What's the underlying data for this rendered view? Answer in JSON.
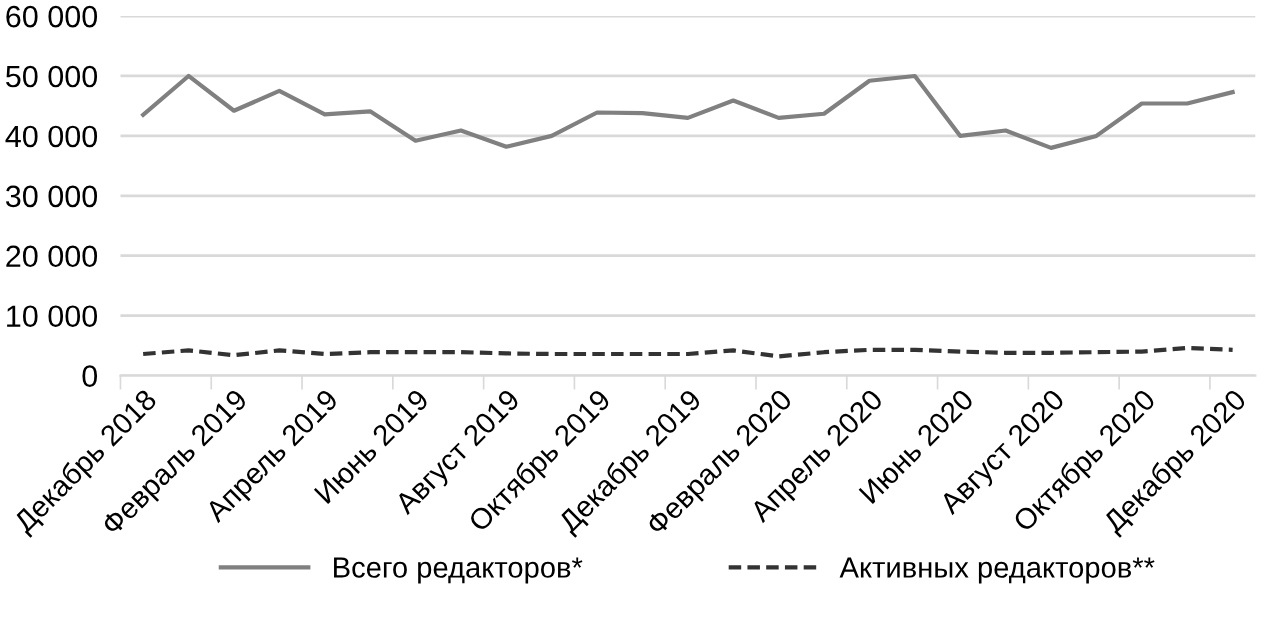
{
  "chart_data": {
    "type": "line",
    "categories": [
      "Декабрь 2018",
      null,
      "Февраль 2019",
      null,
      "Апрель 2019",
      null,
      "Июнь 2019",
      null,
      "Август 2019",
      null,
      "Октябрь 2019",
      null,
      "Декабрь 2019",
      null,
      "Февраль 2020",
      null,
      "Апрель 2020",
      null,
      "Июнь 2020",
      null,
      "Август 2020",
      null,
      "Октябрь 2020",
      null,
      "Декабрь 2020"
    ],
    "series": [
      {
        "name": "Всего редакторов*",
        "color": "#808080",
        "line_style": "solid",
        "values": [
          43500,
          50000,
          44200,
          47500,
          43600,
          44100,
          39200,
          40900,
          38200,
          40000,
          43900,
          43800,
          43000,
          45900,
          43000,
          43700,
          49200,
          50000,
          40000,
          40900,
          38000,
          40000,
          45400,
          45400,
          47300
        ]
      },
      {
        "name": "Активных редакторов**",
        "color": "#333333",
        "line_style": "dashed",
        "values": [
          3600,
          4200,
          3400,
          4200,
          3600,
          3900,
          3900,
          3900,
          3700,
          3600,
          3600,
          3600,
          3600,
          4200,
          3200,
          3900,
          4300,
          4300,
          4000,
          3800,
          3800,
          3900,
          4000,
          4600,
          4300
        ]
      }
    ],
    "ylim": [
      0,
      60000
    ],
    "yticks": [
      {
        "value": 0,
        "label": "0"
      },
      {
        "value": 10000,
        "label": "10 000"
      },
      {
        "value": 20000,
        "label": "20 000"
      },
      {
        "value": 30000,
        "label": "30 000"
      },
      {
        "value": 40000,
        "label": "40 000"
      },
      {
        "value": 50000,
        "label": "50 000"
      },
      {
        "value": 60000,
        "label": "60 000"
      }
    ],
    "grid": "y",
    "legend": "bottom",
    "marker": "none"
  }
}
